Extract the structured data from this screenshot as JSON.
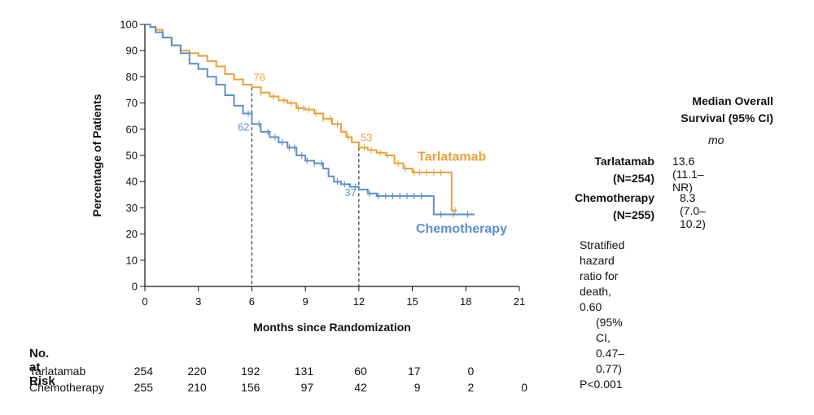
{
  "chart_data": {
    "type": "line",
    "subtype": "kaplan-meier",
    "title": "",
    "xlabel": "Months since Randomization",
    "ylabel": "Percentage of Patients",
    "xlim": [
      0,
      21
    ],
    "ylim": [
      0,
      100
    ],
    "x_ticks": [
      0,
      3,
      6,
      9,
      12,
      15,
      18,
      21
    ],
    "y_ticks": [
      0,
      10,
      20,
      30,
      40,
      50,
      60,
      70,
      80,
      90,
      100
    ],
    "grid": false,
    "series": [
      {
        "name": "Tarlatamab",
        "color": "#e8a13a",
        "points": [
          [
            0,
            100
          ],
          [
            0.3,
            99
          ],
          [
            0.6,
            98
          ],
          [
            1,
            95
          ],
          [
            1.5,
            92
          ],
          [
            2,
            90
          ],
          [
            2.5,
            89
          ],
          [
            3,
            88
          ],
          [
            3.5,
            86
          ],
          [
            4,
            84
          ],
          [
            4.5,
            81
          ],
          [
            5,
            79
          ],
          [
            5.5,
            77
          ],
          [
            6,
            76
          ],
          [
            6.5,
            74
          ],
          [
            7,
            72.5
          ],
          [
            7.5,
            71
          ],
          [
            8,
            70
          ],
          [
            8.5,
            68
          ],
          [
            9,
            67.5
          ],
          [
            9.5,
            66
          ],
          [
            10,
            64
          ],
          [
            10.5,
            62
          ],
          [
            11,
            59
          ],
          [
            11.3,
            57
          ],
          [
            11.6,
            55
          ],
          [
            12,
            53
          ],
          [
            12.5,
            52
          ],
          [
            13,
            51
          ],
          [
            13.5,
            50
          ],
          [
            14,
            47
          ],
          [
            14.5,
            45
          ],
          [
            15,
            43.5
          ],
          [
            16,
            43.5
          ],
          [
            17,
            43.5
          ],
          [
            17.2,
            29
          ],
          [
            17.5,
            29
          ]
        ],
        "censor_x": [
          6.5,
          7.2,
          7.8,
          8.2,
          8.6,
          8.9,
          9.2,
          9.6,
          10,
          10.4,
          10.8,
          11.4,
          12.3,
          12.7,
          13.2,
          13.6,
          14.2,
          14.6,
          15.1,
          15.4,
          15.8,
          16.2,
          16.6,
          17.4
        ]
      },
      {
        "name": "Chemotherapy",
        "color": "#5b8fcf",
        "points": [
          [
            0,
            100
          ],
          [
            0.3,
            99
          ],
          [
            0.6,
            97
          ],
          [
            1,
            95
          ],
          [
            1.5,
            92
          ],
          [
            2,
            89
          ],
          [
            2.5,
            85
          ],
          [
            3,
            83
          ],
          [
            3.5,
            80
          ],
          [
            4,
            77
          ],
          [
            4.5,
            73
          ],
          [
            5,
            69
          ],
          [
            5.5,
            66
          ],
          [
            6,
            62
          ],
          [
            6.5,
            59
          ],
          [
            7,
            57
          ],
          [
            7.5,
            55
          ],
          [
            8,
            53
          ],
          [
            8.5,
            50
          ],
          [
            9,
            48
          ],
          [
            9.5,
            47
          ],
          [
            10,
            45
          ],
          [
            10.3,
            42
          ],
          [
            10.6,
            40
          ],
          [
            11,
            39
          ],
          [
            11.5,
            38
          ],
          [
            12,
            37
          ],
          [
            12.5,
            35.5
          ],
          [
            13,
            34.5
          ],
          [
            14,
            34.5
          ],
          [
            15,
            34.5
          ],
          [
            16,
            34.5
          ],
          [
            16.2,
            27.5
          ],
          [
            17,
            27.5
          ],
          [
            18,
            27.5
          ],
          [
            18.5,
            27.5
          ]
        ],
        "censor_x": [
          5.8,
          6.4,
          6.9,
          7.3,
          7.7,
          8.1,
          8.4,
          8.8,
          9.1,
          9.5,
          9.9,
          10.8,
          11.2,
          11.8,
          12.6,
          13.1,
          13.5,
          13.9,
          14.3,
          14.7,
          15.1,
          15.5,
          16.6,
          17.3,
          18.1
        ]
      }
    ],
    "series_labels": [
      {
        "text": "Tarlatamab",
        "x": 15.3,
        "y": 48
      },
      {
        "text": "Chemotherapy",
        "x": 15.2,
        "y": 20.5
      }
    ],
    "annotations": [
      {
        "text": "76",
        "x": 6,
        "y": 76,
        "series": "Tarlatamab"
      },
      {
        "text": "62",
        "x": 6,
        "y": 62,
        "series": "Chemotherapy"
      },
      {
        "text": "53",
        "x": 12,
        "y": 53,
        "series": "Tarlatamab"
      },
      {
        "text": "37",
        "x": 12,
        "y": 37,
        "series": "Chemotherapy"
      }
    ],
    "reference_lines_x": [
      6,
      12
    ]
  },
  "legend": {
    "header_line1": "Median Overall",
    "header_line2": "Survival (95% CI)",
    "unit": "mo",
    "groups": [
      {
        "name": "Tarlatamab",
        "n": "(N=254)",
        "value": "13.6 (11.1–NR)"
      },
      {
        "name": "Chemotherapy",
        "n": "(N=255)",
        "value": "8.3 (7.0–10.2)"
      }
    ],
    "hr_line1": "Stratified hazard ratio for death, 0.60",
    "hr_line2": "(95% CI, 0.47–0.77)",
    "hr_line3": "P<0.001"
  },
  "risk_table": {
    "title": "No. at Risk",
    "rows": [
      {
        "label": "Tarlatamab",
        "values": [
          "254",
          "220",
          "192",
          "131",
          "60",
          "17",
          "0"
        ]
      },
      {
        "label": "Chemotherapy",
        "values": [
          "255",
          "210",
          "156",
          "97",
          "42",
          "9",
          "2",
          "0"
        ]
      }
    ]
  }
}
